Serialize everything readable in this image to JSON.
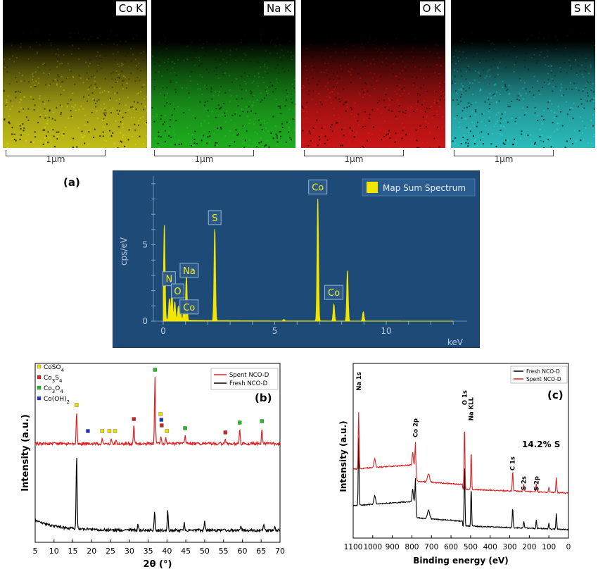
{
  "maps": [
    {
      "label": "Co K",
      "scale": "1µm",
      "color": "#d8d21a"
    },
    {
      "label": "Na K",
      "scale": "1µm",
      "color": "#22c022"
    },
    {
      "label": "O K",
      "scale": "1µm",
      "color": "#e01818"
    },
    {
      "label": "S K",
      "scale": "1µm",
      "color": "#30d0d0"
    }
  ],
  "panel_labels": {
    "a": "(a)",
    "b": "(b)",
    "c": "(c)"
  },
  "chart_data": [
    {
      "type": "line",
      "panel": "a",
      "legend": "Map Sum Spectrum",
      "ylabel": "cps/eV",
      "xunit": "keV",
      "xlim": [
        0,
        13.5
      ],
      "ylim": [
        0,
        9.5
      ],
      "xticks": [
        0,
        5,
        10
      ],
      "yticks": [
        0,
        5
      ],
      "series_color": "#f2e600",
      "peaks": [
        {
          "x": 0.05,
          "y": 6.2
        },
        {
          "x": 0.28,
          "y": 1.4
        },
        {
          "x": 0.39,
          "y": 1.9
        },
        {
          "x": 0.52,
          "y": 1.2
        },
        {
          "x": 0.68,
          "y": 0.9
        },
        {
          "x": 0.78,
          "y": 0.5
        },
        {
          "x": 0.93,
          "y": 0.7
        },
        {
          "x": 1.04,
          "y": 2.9
        },
        {
          "x": 2.31,
          "y": 6.0
        },
        {
          "x": 5.41,
          "y": 0.1
        },
        {
          "x": 6.93,
          "y": 8.0
        },
        {
          "x": 7.65,
          "y": 1.1
        },
        {
          "x": 8.26,
          "y": 3.3
        },
        {
          "x": 8.97,
          "y": 0.6
        }
      ],
      "peak_labels": [
        {
          "text": "N",
          "x": 0.39,
          "y": 1.9
        },
        {
          "text": "O",
          "x": 0.52,
          "y": 1.2
        },
        {
          "text": "Na",
          "x": 1.04,
          "y": 2.9
        },
        {
          "text": "Co",
          "x": 0.78,
          "y": 0.5
        },
        {
          "text": "S",
          "x": 2.31,
          "y": 6.0
        },
        {
          "text": "Co",
          "x": 6.93,
          "y": 8.0
        },
        {
          "text": "Co",
          "x": 7.65,
          "y": 1.1
        }
      ]
    },
    {
      "type": "line",
      "panel": "b",
      "xlabel": "2θ (°)",
      "ylabel": "Intensity (a.u.)",
      "xlim": [
        5,
        70
      ],
      "xticks": [
        5,
        10,
        15,
        20,
        25,
        30,
        35,
        40,
        45,
        50,
        55,
        60,
        65,
        70
      ],
      "series": [
        {
          "name": "Spent NCO-D",
          "color": "#e02020",
          "peaks": [
            {
              "x": 16.0,
              "h": 45
            },
            {
              "x": 22.8,
              "h": 8
            },
            {
              "x": 25.2,
              "h": 6
            },
            {
              "x": 26.5,
              "h": 4
            },
            {
              "x": 31.2,
              "h": 25
            },
            {
              "x": 36.8,
              "h": 95
            },
            {
              "x": 38.4,
              "h": 10
            },
            {
              "x": 39.7,
              "h": 8
            },
            {
              "x": 44.8,
              "h": 12
            },
            {
              "x": 55.5,
              "h": 6
            },
            {
              "x": 59.3,
              "h": 20
            },
            {
              "x": 65.2,
              "h": 22
            }
          ]
        },
        {
          "name": "Fresh NCO-D",
          "color": "#000000",
          "peaks": [
            {
              "x": 16.0,
              "h": 105
            },
            {
              "x": 32.3,
              "h": 8
            },
            {
              "x": 36.7,
              "h": 25
            },
            {
              "x": 40.2,
              "h": 28
            },
            {
              "x": 44.6,
              "h": 10
            },
            {
              "x": 50.0,
              "h": 14
            },
            {
              "x": 59.6,
              "h": 6
            },
            {
              "x": 65.7,
              "h": 10
            },
            {
              "x": 68.6,
              "h": 6
            }
          ]
        }
      ],
      "phase_legend": [
        {
          "label": "CoSO4",
          "color": "#f0e000"
        },
        {
          "label": "Co3S4",
          "color": "#d02020"
        },
        {
          "label": "Co3O4",
          "color": "#20c020"
        },
        {
          "label": "Co(OH)2",
          "color": "#2030d0"
        }
      ],
      "markers": [
        {
          "x": 16.0,
          "phase": 0
        },
        {
          "x": 19.0,
          "phase": 3
        },
        {
          "x": 22.8,
          "phase": 0
        },
        {
          "x": 24.7,
          "phase": 0
        },
        {
          "x": 26.2,
          "phase": 0
        },
        {
          "x": 31.2,
          "phase": 1
        },
        {
          "x": 36.8,
          "phase": 2
        },
        {
          "x": 38.3,
          "phase": 0
        },
        {
          "x": 38.5,
          "phase": 3
        },
        {
          "x": 38.6,
          "phase": 1
        },
        {
          "x": 40.0,
          "phase": 0
        },
        {
          "x": 44.8,
          "phase": 2
        },
        {
          "x": 55.5,
          "phase": 1
        },
        {
          "x": 59.3,
          "phase": 2
        },
        {
          "x": 65.2,
          "phase": 2
        }
      ]
    },
    {
      "type": "line",
      "panel": "c",
      "xlabel": "Binding energy (eV)",
      "ylabel": "Intensity (a.u.)",
      "xlim": [
        1100,
        0
      ],
      "xticks": [
        1100,
        1000,
        900,
        800,
        700,
        600,
        500,
        400,
        300,
        200,
        100,
        0
      ],
      "annotation": "14.2% S",
      "series": [
        {
          "name": "Fresh NCO-D",
          "color": "#000000"
        },
        {
          "name": "Spent NCO-D",
          "color": "#e02020"
        }
      ],
      "peak_labels": [
        {
          "text": "Na 1s",
          "x": 1072
        },
        {
          "text": "Co 2p",
          "x": 781
        },
        {
          "text": "O 1s",
          "x": 531
        },
        {
          "text": "Na KLL",
          "x": 497
        },
        {
          "text": "C 1s",
          "x": 285
        },
        {
          "text": "S 2s",
          "x": 228
        },
        {
          "text": "S 2p",
          "x": 164
        }
      ]
    }
  ]
}
